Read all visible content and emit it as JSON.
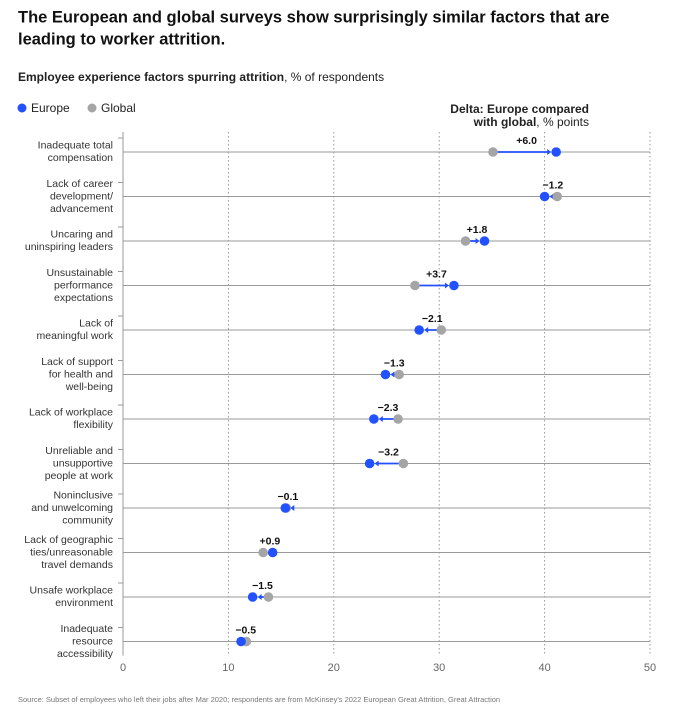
{
  "chart_data": {
    "type": "dumbbell",
    "title": [
      "The European and global surveys show surprisingly similar factors that are",
      "leading to worker attrition."
    ],
    "subtitle": "Employee experience factors spurring attrition",
    "subtitle_unit": ", % of respondents",
    "delta_title": [
      "Delta: Europe compared",
      "with global"
    ],
    "delta_unit": ", % points",
    "categories": [
      [
        "Inadequate total",
        "compensation"
      ],
      [
        "Lack of career",
        "development/",
        "advancement"
      ],
      [
        "Uncaring and",
        "uninspiring leaders"
      ],
      [
        "Unsustainable",
        "performance",
        "expectations"
      ],
      [
        "Lack of",
        "meaningful work"
      ],
      [
        "Lack of support",
        "for health and",
        "well-being"
      ],
      [
        "Lack of workplace",
        "flexibility"
      ],
      [
        "Unreliable and",
        "unsupportive",
        "people at work"
      ],
      [
        "Noninclusive",
        "and unwelcoming",
        "community"
      ],
      [
        "Lack of geographic",
        "ties/unreasonable",
        "travel demands"
      ],
      [
        "Unsafe workplace",
        "environment"
      ],
      [
        "Inadequate",
        "resource",
        "accessibility"
      ]
    ],
    "series": [
      {
        "name": "Europe",
        "color": "#2251ff",
        "values": [
          41.1,
          40.0,
          34.3,
          31.4,
          28.1,
          24.9,
          23.8,
          23.4,
          15.4,
          14.2,
          12.3,
          11.2
        ]
      },
      {
        "name": "Global",
        "color": "#a5a5a5",
        "values": [
          35.1,
          41.2,
          32.5,
          27.7,
          30.2,
          26.2,
          26.1,
          26.6,
          15.5,
          13.3,
          13.8,
          11.7
        ]
      }
    ],
    "deltas": {
      "values": [
        6.0,
        -1.2,
        1.8,
        3.7,
        -2.1,
        -1.3,
        -2.3,
        -3.2,
        -0.1,
        0.9,
        -1.5,
        -0.5
      ],
      "value_labels": [
        "+6.0",
        "−1.2",
        "+1.8",
        "+3.7",
        "−2.1",
        "−1.3",
        "−2.3",
        "−3.2",
        "−0.1",
        "+0.9",
        "−1.5",
        "−0.5"
      ]
    },
    "xlim": [
      0,
      50
    ],
    "xticks": [
      0,
      10,
      20,
      30,
      40,
      50
    ],
    "source": "Source: Subset of employees who left their jobs after Mar 2020; respondents are from McKinsey's 2022 European Great Attrition, Great Attraction"
  }
}
